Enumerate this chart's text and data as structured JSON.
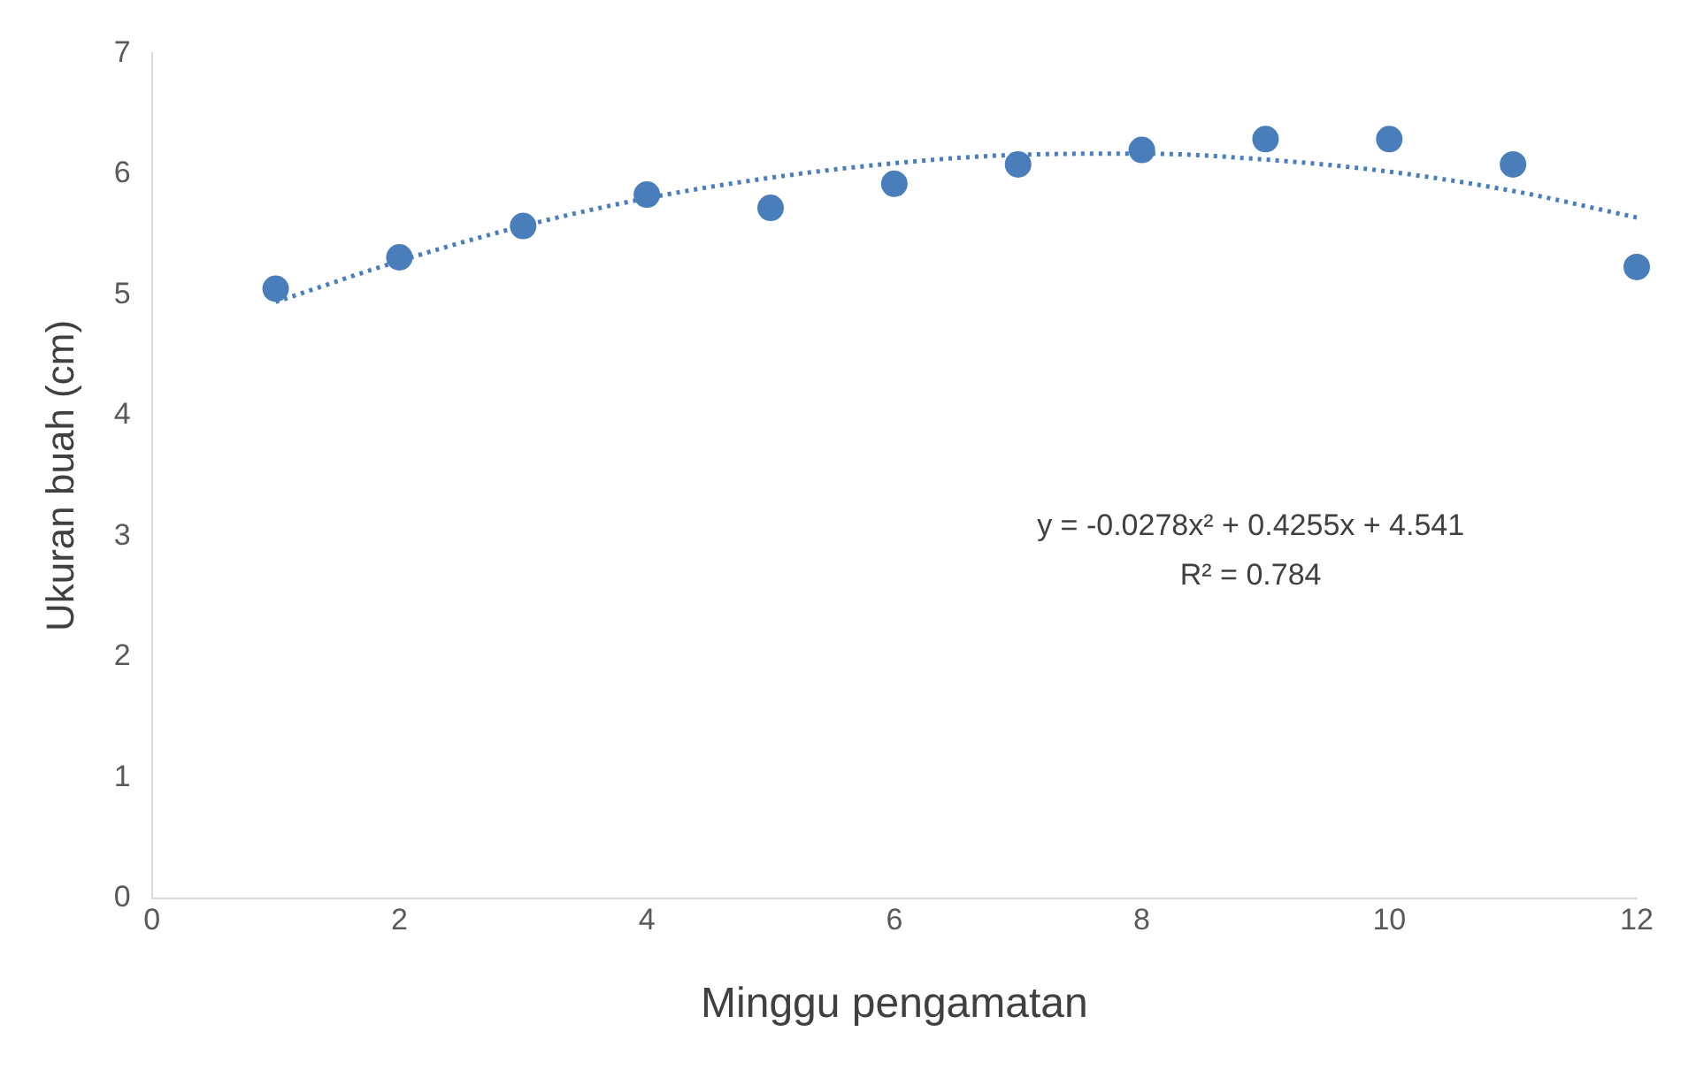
{
  "chart_data": {
    "type": "scatter",
    "xlabel": "Minggu pengamatan",
    "ylabel": "Ukuran buah (cm)",
    "x": [
      1,
      2,
      3,
      4,
      5,
      6,
      7,
      8,
      9,
      10,
      11,
      12
    ],
    "series": [
      {
        "color": "#4a7ebb",
        "marker": "circle",
        "values": [
          5.05,
          5.31,
          5.57,
          5.83,
          5.72,
          5.92,
          6.08,
          6.2,
          6.29,
          6.29,
          6.08,
          5.23
        ]
      },
      {
        "type": "line",
        "color": "#4a7ebb",
        "line_style": "dotted",
        "marker": "none",
        "x": [
          1,
          2,
          3,
          4,
          5,
          6,
          7,
          8,
          9,
          10,
          11,
          12
        ],
        "values": [
          4.94,
          5.28,
          5.57,
          5.8,
          5.97,
          6.09,
          6.16,
          6.17,
          6.12,
          6.02,
          5.86,
          5.64
        ]
      }
    ],
    "xlim": [
      0,
      12
    ],
    "xticks": [
      0,
      2,
      4,
      6,
      8,
      10,
      12
    ],
    "ylim": [
      0,
      7
    ],
    "yticks": [
      0,
      1,
      2,
      3,
      4,
      5,
      6,
      7
    ],
    "grid": false,
    "legend": false,
    "annotations": [
      "y = -0.0278x² + 0.4255x + 4.541",
      "R² = 0.784"
    ]
  }
}
